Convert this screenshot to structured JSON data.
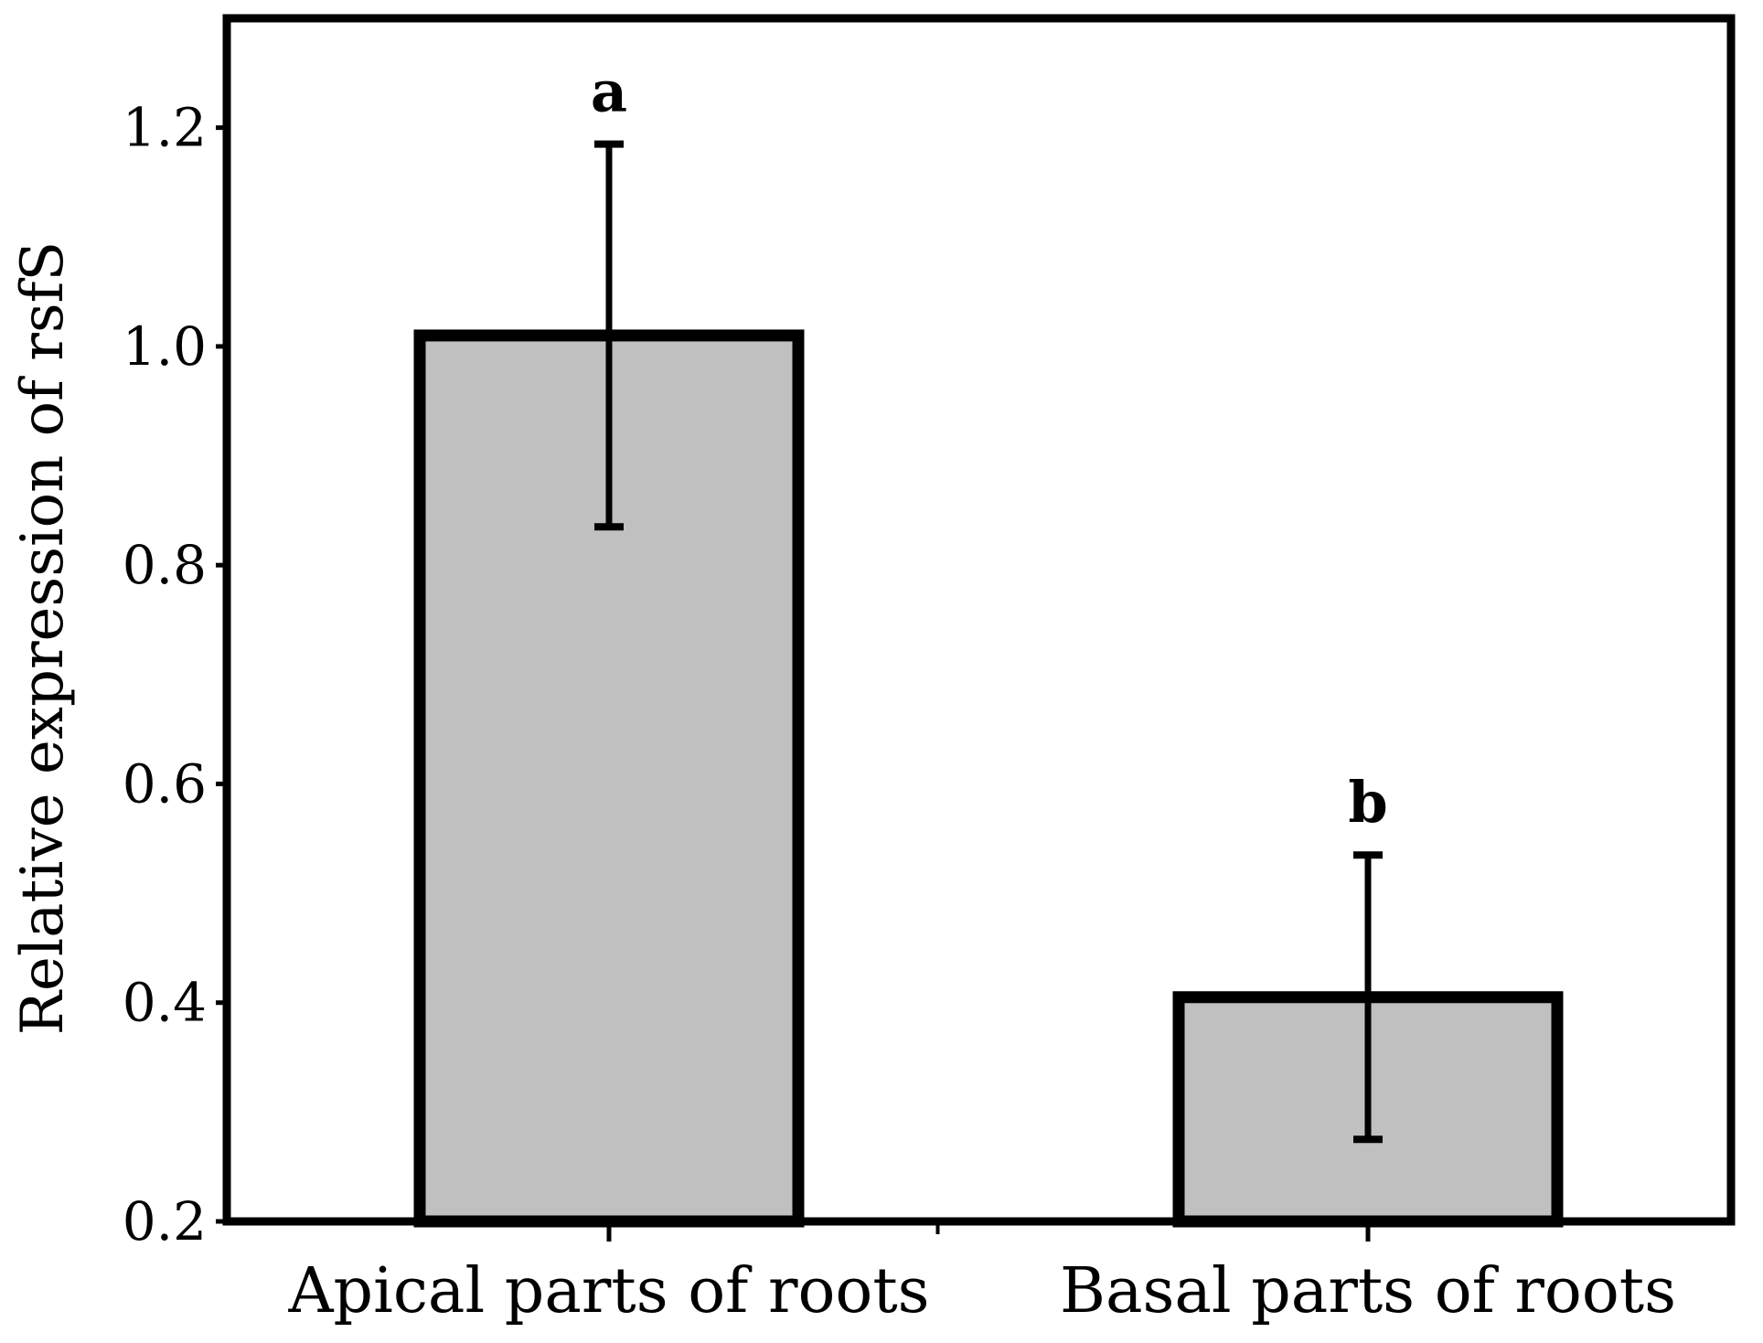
{
  "chart_data": {
    "type": "bar",
    "title": "",
    "xlabel": "",
    "ylabel": "Relative expression of rsfS",
    "categories": [
      "Apical parts of roots",
      "Basal parts of roots"
    ],
    "values": [
      1.01,
      0.405
    ],
    "error_low": [
      0.835,
      0.275
    ],
    "error_high": [
      1.185,
      0.535
    ],
    "significance_letters": [
      "a",
      "b"
    ],
    "ylim": [
      0.2,
      1.3
    ],
    "yticks": [
      0.2,
      0.4,
      0.6,
      0.8,
      1.0,
      1.2
    ],
    "ytick_labels": [
      "0.2",
      "0.4",
      "0.6",
      "0.8",
      "1.0",
      "1.2"
    ],
    "bar_color": "#c0c0c0",
    "edge_color": "#000000",
    "grid": false,
    "legend": "none"
  }
}
